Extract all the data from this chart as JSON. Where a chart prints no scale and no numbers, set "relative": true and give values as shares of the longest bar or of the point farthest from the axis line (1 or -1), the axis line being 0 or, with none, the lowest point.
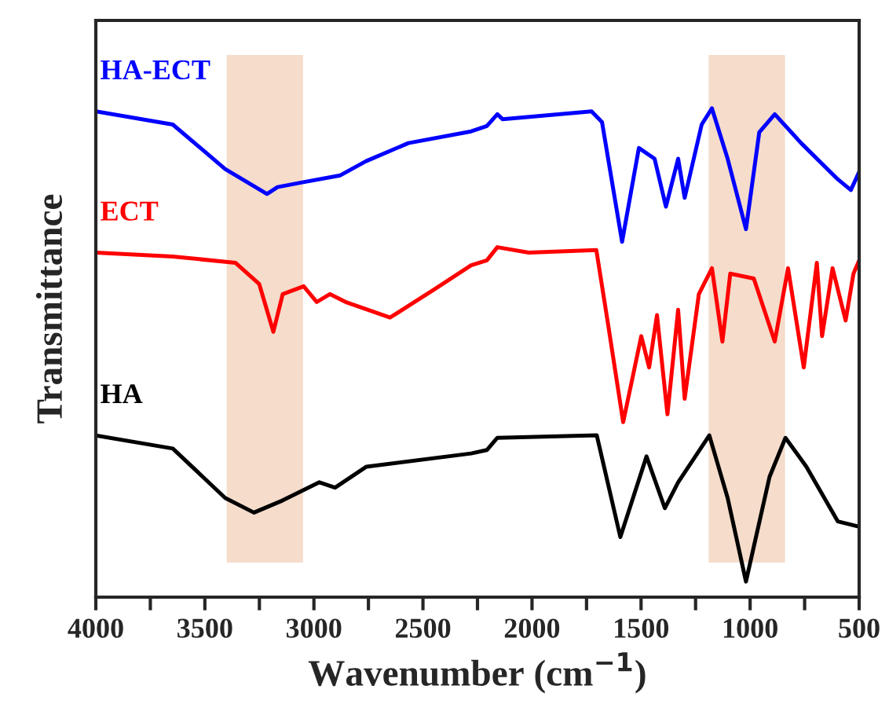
{
  "chart_data": {
    "type": "line",
    "relative": true,
    "xlabel": "Wavenumber (cm$^{−1}$)",
    "ylabel": "Transmittance",
    "xlim": [
      4000,
      500
    ],
    "xticks": [
      4000,
      {
        "value": 3750,
        "label": null
      },
      3500,
      {
        "value": 3250,
        "label": null
      },
      3000,
      {
        "value": 2750,
        "label": null
      },
      2500,
      {
        "value": 2250,
        "label": null
      },
      2000,
      {
        "value": 1750,
        "label": null
      },
      1500,
      {
        "value": 1250,
        "label": null
      },
      1000,
      {
        "value": 750,
        "label": null
      },
      500
    ],
    "tick_labels": "x",
    "grid": false,
    "legend": false,
    "line_style": "solid",
    "marker": "none",
    "bands": [
      {
        "axis": "x",
        "from": 3400,
        "to": 3050,
        "color": "#f5dccb"
      },
      {
        "axis": "x",
        "from": 1190,
        "to": 840,
        "color": "#f5dccb"
      }
    ],
    "series": [
      {
        "name": "HA-ECT",
        "color": "#0000ff",
        "x": [
          4000,
          3647,
          3407,
          3215,
          3167,
          3049,
          2879,
          2761,
          2567,
          2279,
          2207,
          2159,
          2135,
          1727,
          1679,
          1631,
          1587,
          1510,
          1438,
          1386,
          1330,
          1300,
          1222,
          1175,
          1103,
          1019,
          958,
          887,
          766,
          598,
          538,
          500
        ],
        "values": [
          0.994,
          0.967,
          0.876,
          0.825,
          0.839,
          0.849,
          0.863,
          0.892,
          0.929,
          0.953,
          0.964,
          0.988,
          0.978,
          0.994,
          0.972,
          0.844,
          0.727,
          0.919,
          0.897,
          0.799,
          0.897,
          0.817,
          0.967,
          1,
          0.897,
          0.753,
          0.951,
          0.988,
          0.929,
          0.855,
          0.833,
          0.87
        ]
      },
      {
        "name": "ECT",
        "color": "#ff0000",
        "x": [
          4000,
          3647,
          3359,
          3251,
          3186,
          3143,
          3047,
          2987,
          2927,
          2855,
          2651,
          2447,
          2279,
          2207,
          2159,
          2015,
          1705,
          1650,
          1582,
          1499,
          1463,
          1427,
          1379,
          1330,
          1300,
          1235,
          1175,
          1127,
          1091,
          983,
          887,
          826,
          754,
          694,
          670,
          622,
          562,
          526,
          500
        ],
        "values": [
          0.705,
          0.697,
          0.684,
          0.641,
          0.543,
          0.62,
          0.636,
          0.604,
          0.62,
          0.604,
          0.572,
          0.63,
          0.679,
          0.689,
          0.716,
          0.705,
          0.71,
          0.555,
          0.358,
          0.534,
          0.47,
          0.577,
          0.374,
          0.588,
          0.406,
          0.62,
          0.673,
          0.523,
          0.662,
          0.652,
          0.523,
          0.673,
          0.47,
          0.684,
          0.534,
          0.673,
          0.566,
          0.662,
          0.689
        ]
      },
      {
        "name": "HA",
        "color": "#000000",
        "x": [
          4000,
          3647,
          3407,
          3275,
          3143,
          2975,
          2903,
          2759,
          2279,
          2207,
          2159,
          1703,
          1595,
          1475,
          1391,
          1330,
          1187,
          1103,
          1019,
          911,
          838,
          742,
          598,
          500
        ],
        "values": [
          0.331,
          0.304,
          0.203,
          0.173,
          0.198,
          0.235,
          0.224,
          0.267,
          0.294,
          0.301,
          0.326,
          0.331,
          0.123,
          0.288,
          0.182,
          0.235,
          0.331,
          0.203,
          0.032,
          0.246,
          0.326,
          0.267,
          0.155,
          0.144
        ]
      }
    ]
  }
}
